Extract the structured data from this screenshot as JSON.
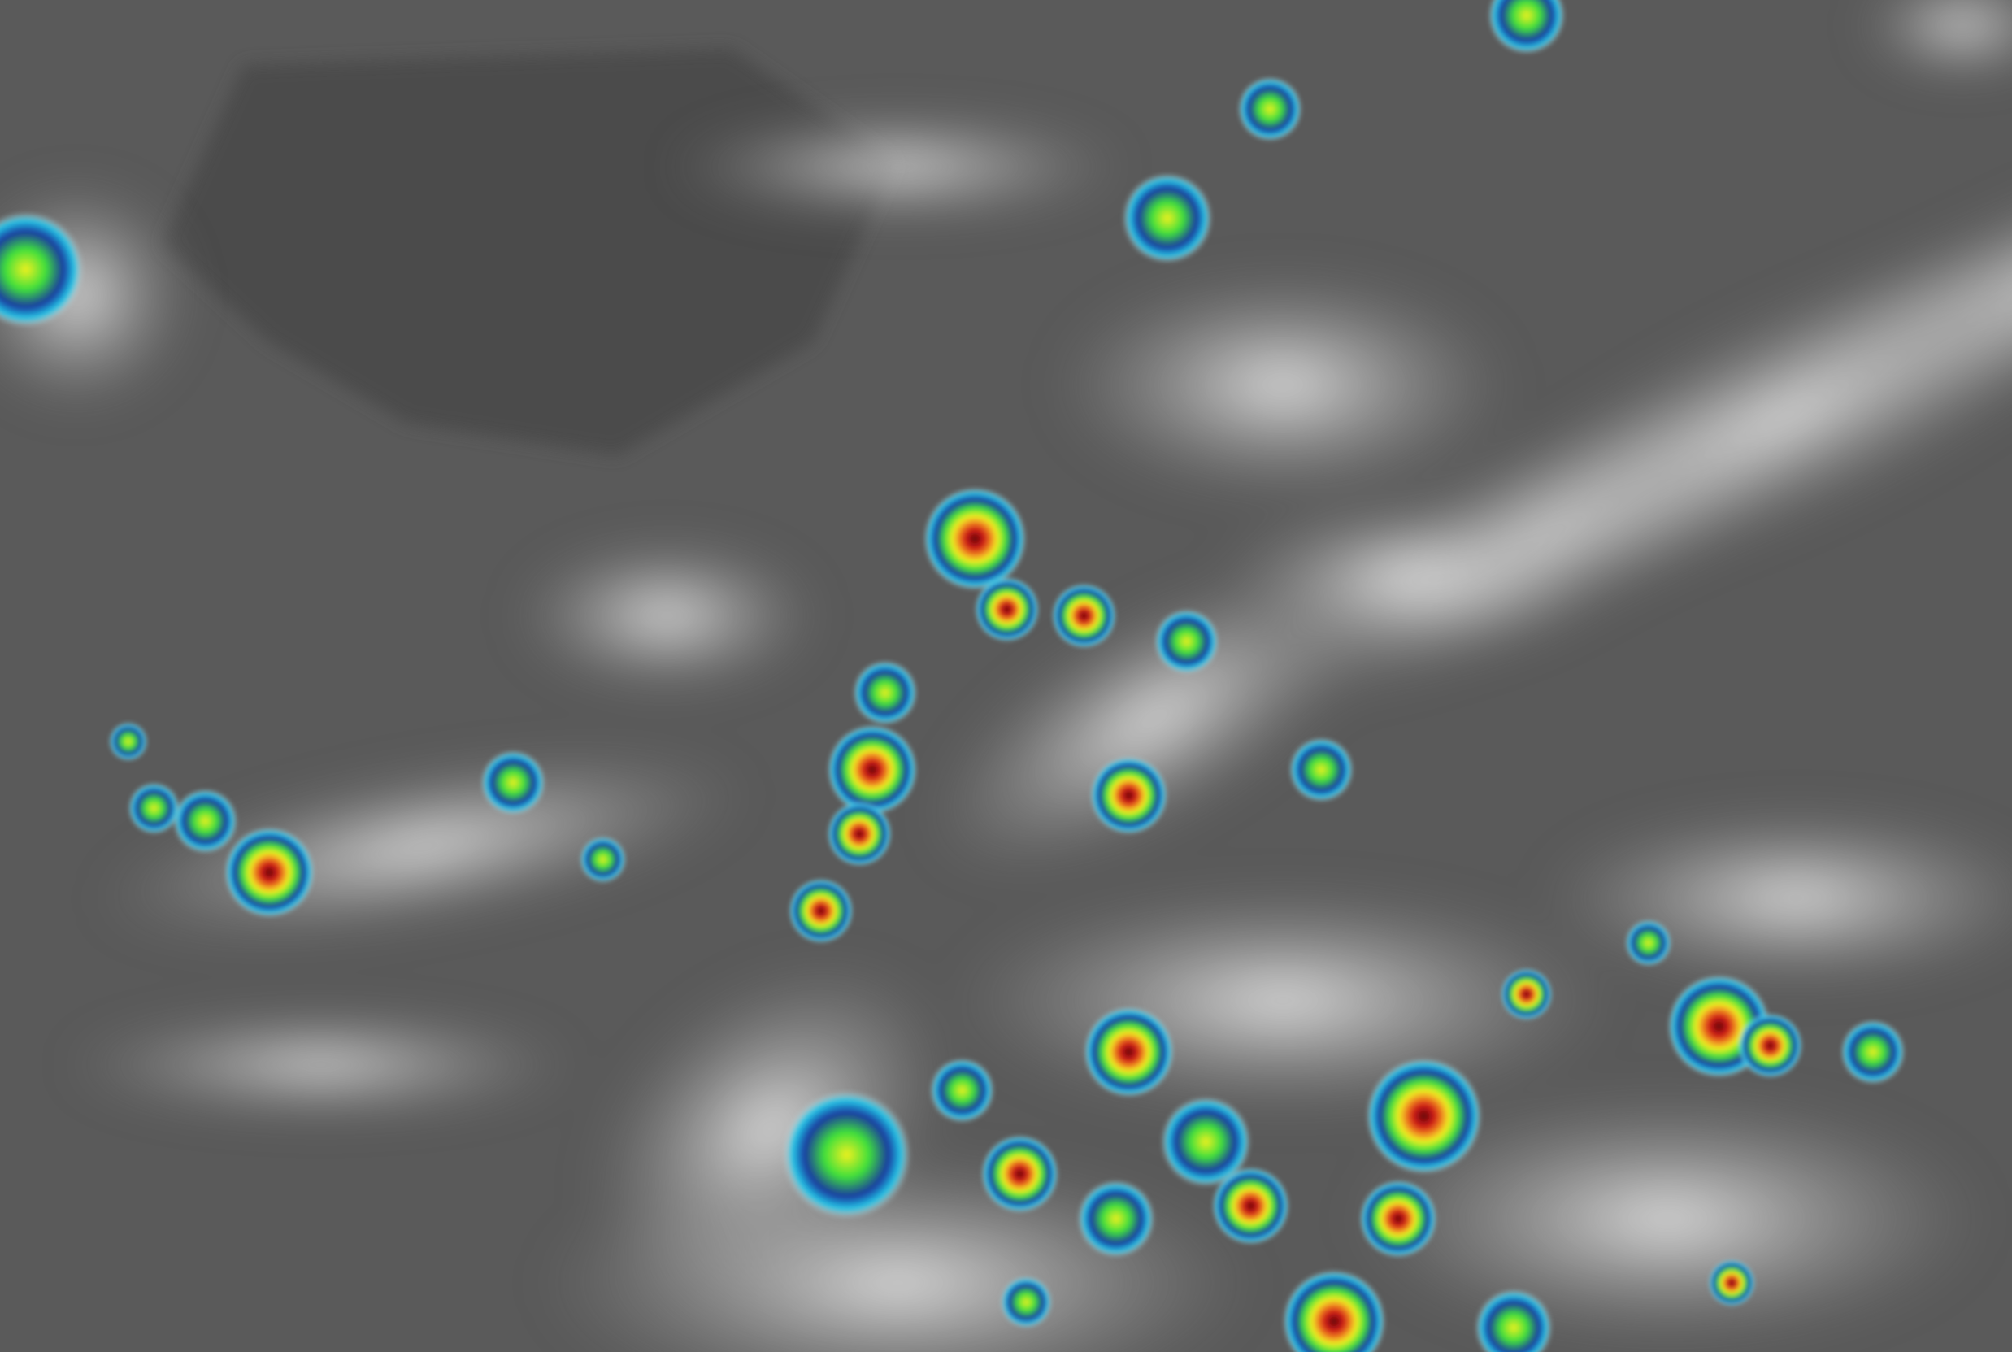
{
  "image": {
    "kind": "enhanced infrared satellite imagery",
    "background_color": "#5a5a5a",
    "palette": {
      "cloud_white": "#f2f2f2",
      "cyan": "#22c8e8",
      "blue": "#1a3aa0",
      "green": "#3ee03a",
      "yellow": "#f0f020",
      "orange": "#f08a20",
      "red": "#d01818",
      "dark_red": "#5a0a0a"
    }
  }
}
